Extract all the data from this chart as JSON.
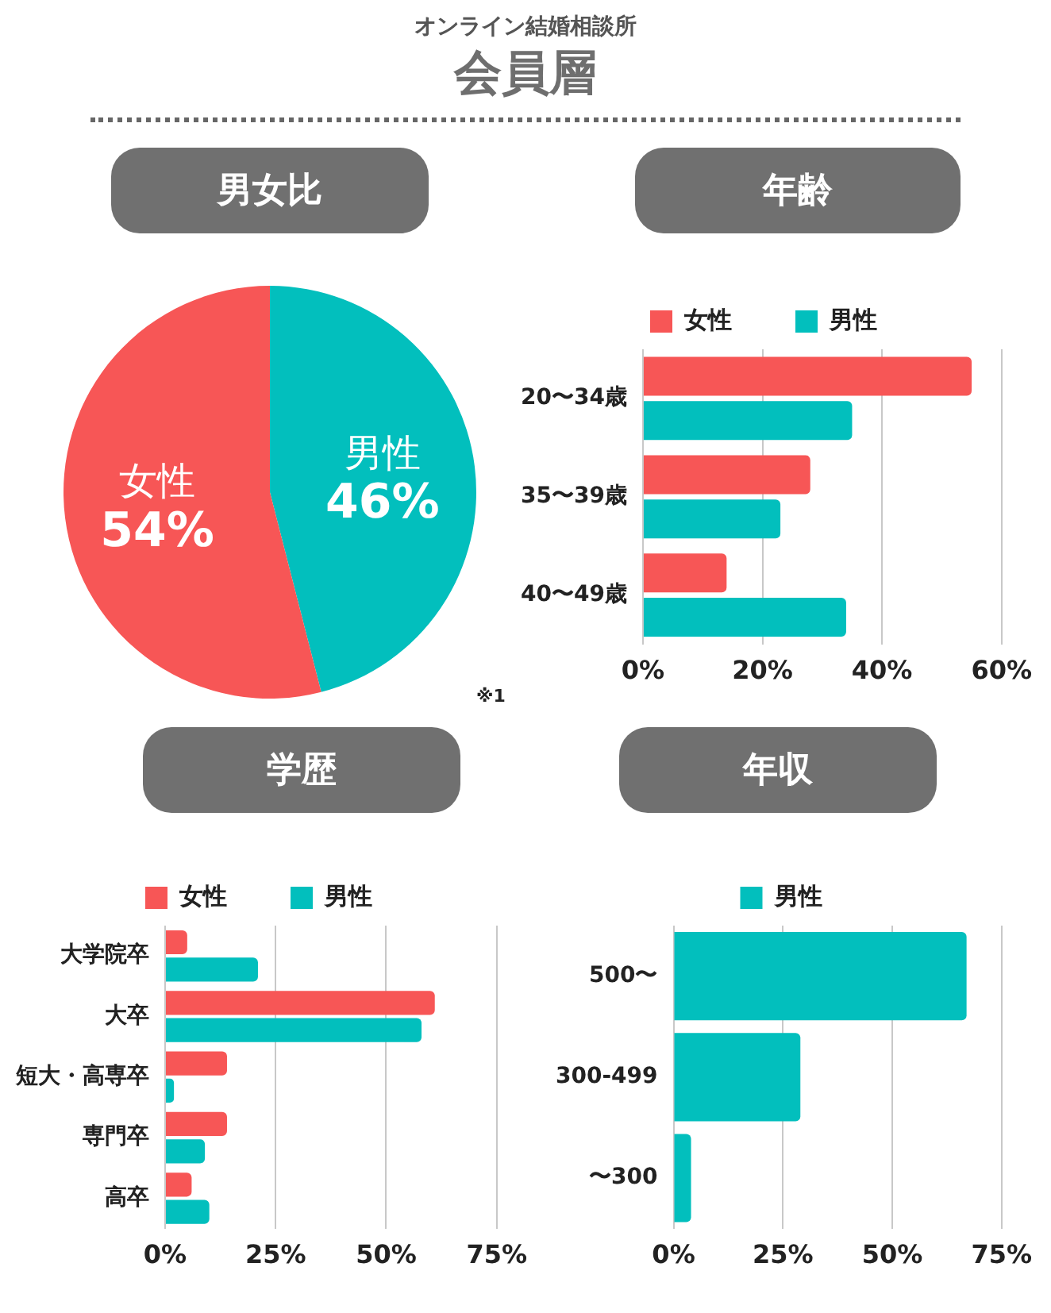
{
  "chart_data": [
    {
      "type": "pie",
      "title": "男女比",
      "categories": [
        "男性",
        "女性"
      ],
      "values": [
        46,
        54
      ],
      "colors": [
        "#02bfbd",
        "#f75656"
      ],
      "value_labels": [
        "46%",
        "54%"
      ],
      "annotations": [
        "オンライン結婚相談所",
        "会員層"
      ]
    },
    {
      "type": "bar",
      "orientation": "horizontal",
      "title": "年齢",
      "categories": [
        "20〜34歳",
        "35〜39歳",
        "40〜49歳"
      ],
      "series": [
        {
          "name": "女性",
          "color": "#f75656",
          "values": [
            55,
            28,
            14
          ]
        },
        {
          "name": "男性",
          "color": "#02bfbd",
          "values": [
            35,
            23,
            34
          ]
        }
      ],
      "xlim": [
        0,
        60
      ],
      "xticks": [
        {
          "value": 0,
          "label": "0%"
        },
        {
          "value": 20,
          "label": "20%"
        },
        {
          "value": 40,
          "label": "40%"
        },
        {
          "value": 60,
          "label": "60%"
        }
      ],
      "grid": "x",
      "legend": "top",
      "annotations": [
        "※1"
      ]
    },
    {
      "type": "bar",
      "orientation": "horizontal",
      "title": "学歴",
      "categories": [
        "大学院卒",
        "大卒",
        "短大・高専卒",
        "専門卒",
        "高卒"
      ],
      "series": [
        {
          "name": "女性",
          "color": "#f75656",
          "values": [
            5,
            61,
            14,
            14,
            6
          ]
        },
        {
          "name": "男性",
          "color": "#02bfbd",
          "values": [
            21,
            58,
            2,
            9,
            10
          ]
        }
      ],
      "xlim": [
        0,
        75
      ],
      "xticks": [
        {
          "value": 0,
          "label": "0%"
        },
        {
          "value": 25,
          "label": "25%"
        },
        {
          "value": 50,
          "label": "50%"
        },
        {
          "value": 75,
          "label": "75%"
        }
      ],
      "grid": "x",
      "legend": "top"
    },
    {
      "type": "bar",
      "orientation": "horizontal",
      "title": "年収",
      "categories": [
        "500〜",
        "300-499",
        "〜300"
      ],
      "series": [
        {
          "name": "男性",
          "color": "#02bfbd",
          "values": [
            67,
            29,
            4
          ]
        }
      ],
      "xlim": [
        0,
        75
      ],
      "xticks": [
        {
          "value": 0,
          "label": "0%"
        },
        {
          "value": 25,
          "label": "25%"
        },
        {
          "value": 50,
          "label": "50%"
        },
        {
          "value": 75,
          "label": "75%"
        }
      ],
      "grid": "x",
      "legend": "top"
    }
  ]
}
